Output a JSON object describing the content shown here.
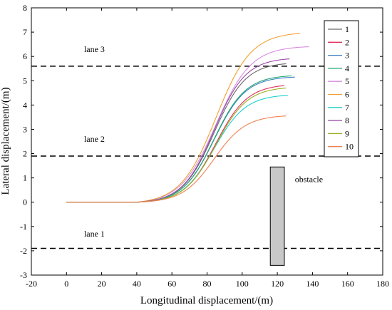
{
  "chart_data": {
    "type": "line",
    "xlabel": "Longitudinal displacement/(m)",
    "ylabel": "Lateral displacement/(m)",
    "xlim": [
      -20,
      180
    ],
    "ylim": [
      -3,
      8
    ],
    "xticks": [
      -20,
      0,
      20,
      40,
      60,
      80,
      100,
      120,
      140,
      160,
      180
    ],
    "yticks": [
      -3,
      -2,
      -1,
      0,
      1,
      2,
      3,
      4,
      5,
      6,
      7,
      8
    ],
    "grid": false,
    "legend_position": "top-right",
    "lanes": [
      {
        "label": "lane 3",
        "y": 5.6,
        "label_x": 10,
        "label_y": 6.3
      },
      {
        "label": "lane 2",
        "y": 1.9,
        "label_x": 10,
        "label_y": 2.6
      },
      {
        "label": "lane 1",
        "y": -1.9,
        "label_x": 10,
        "label_y": -1.3
      }
    ],
    "obstacle": {
      "label": "obstacle",
      "x": [
        116,
        124
      ],
      "y": [
        -2.6,
        1.45
      ],
      "label_x": 130,
      "label_y": 0.95,
      "color": "#c8c8c8"
    },
    "series": [
      {
        "name": "1",
        "color": "#6a6a6a",
        "x_start": 60,
        "x_mid": 84,
        "width": 9,
        "x_end": 125,
        "y_end": 5.7
      },
      {
        "name": "2",
        "color": "#e0305a",
        "x_start": 60,
        "x_mid": 85,
        "width": 9,
        "x_end": 124,
        "y_end": 4.8
      },
      {
        "name": "3",
        "color": "#3b82c4",
        "x_start": 60,
        "x_mid": 84,
        "width": 9,
        "x_end": 130,
        "y_end": 5.15
      },
      {
        "name": "4",
        "color": "#22a66e",
        "x_start": 60,
        "x_mid": 84,
        "width": 9,
        "x_end": 128,
        "y_end": 5.2
      },
      {
        "name": "5",
        "color": "#d98be0",
        "x_start": 60,
        "x_mid": 85,
        "width": 10,
        "x_end": 138,
        "y_end": 6.4
      },
      {
        "name": "6",
        "color": "#f0a030",
        "x_start": 60,
        "x_mid": 85,
        "width": 10,
        "x_end": 133,
        "y_end": 6.95
      },
      {
        "name": "7",
        "color": "#20d0d0",
        "x_start": 60,
        "x_mid": 84,
        "width": 9,
        "x_end": 126,
        "y_end": 4.4
      },
      {
        "name": "8",
        "color": "#9a4aa8",
        "x_start": 60,
        "x_mid": 84,
        "width": 9,
        "x_end": 127,
        "y_end": 5.9
      },
      {
        "name": "9",
        "color": "#9ab020",
        "x_start": 60,
        "x_mid": 85,
        "width": 9,
        "x_end": 125,
        "y_end": 4.7
      },
      {
        "name": "10",
        "color": "#f08050",
        "x_start": 60,
        "x_mid": 84,
        "width": 9,
        "x_end": 125,
        "y_end": 3.55
      }
    ]
  }
}
